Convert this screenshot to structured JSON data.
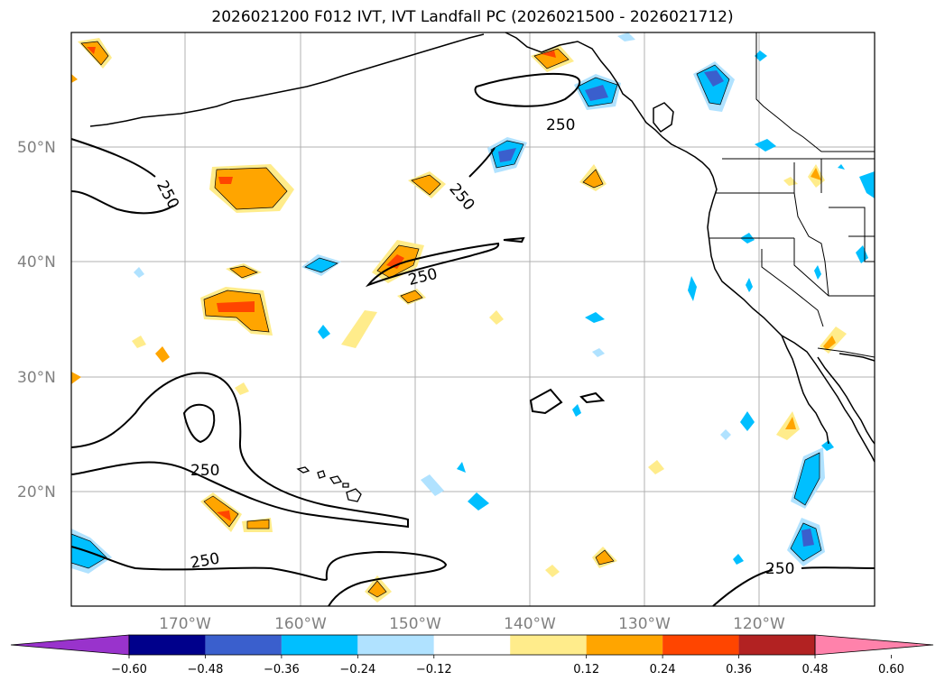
{
  "title": "2026021200 F012 IVT, IVT Landfall PC (2026021500 - 2026021712)",
  "map": {
    "lat_labels": [
      "50°N",
      "40°N",
      "30°N",
      "20°N"
    ],
    "lon_labels": [
      "170°W",
      "160°W",
      "150°W",
      "140°W",
      "130°W",
      "120°W"
    ],
    "ivt_contour_value": "250",
    "contour_labels": [
      "250",
      "250",
      "250",
      "250",
      "250",
      "250"
    ],
    "grid": true,
    "projection": "Plate Carree"
  },
  "colorbar": {
    "ticks": [
      "−0.60",
      "−0.48",
      "−0.36",
      "−0.24",
      "−0.12",
      "0.12",
      "0.24",
      "0.36",
      "0.48",
      "0.60"
    ],
    "colors": [
      "#9933cc",
      "#00008b",
      "#3a5fcd",
      "#00bfff",
      "#b0e2ff",
      "#ffffff",
      "#ffec8b",
      "#ffa500",
      "#ff4500",
      "#b22222",
      "#ff82ab"
    ]
  },
  "colors": {
    "negative_strong": "#3a5fcd",
    "negative_mid": "#00bfff",
    "negative_weak": "#b0e2ff",
    "positive_weak": "#ffec8b",
    "positive_mid": "#ffa500",
    "positive_strong": "#ff4500",
    "grid": "#b0b0b0"
  }
}
